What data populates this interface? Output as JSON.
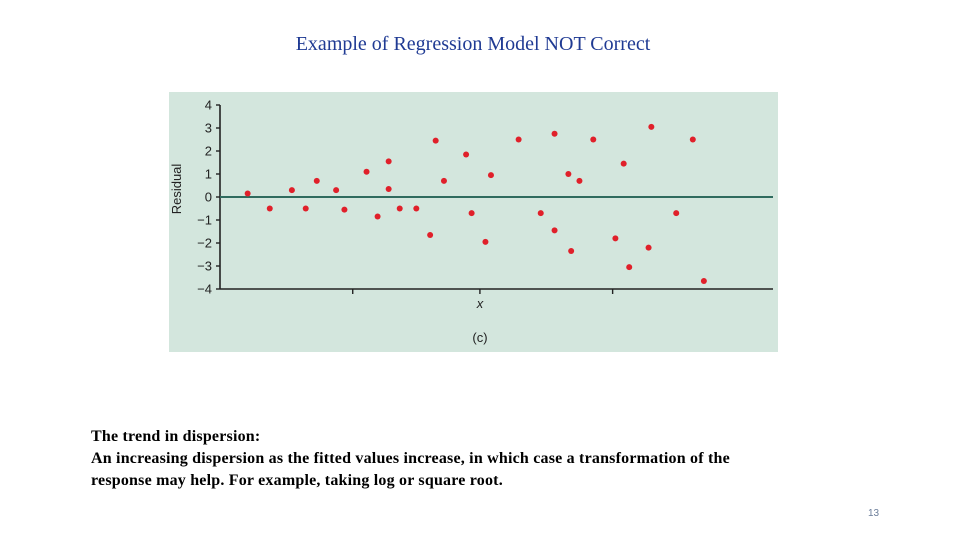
{
  "slide": {
    "title": "Example of Regression Model NOT Correct",
    "body_lines": [
      "The trend in dispersion:",
      "An increasing dispersion as the fitted values increase, in which case a transformation of the",
      "response may help. For example, taking log or square root."
    ],
    "page_number": "13"
  },
  "colors": {
    "plot_background": "#d3e6dd",
    "point": "#e0202a",
    "zero_line": "#2f6b5e",
    "axis": "#222222"
  },
  "chart_data": {
    "type": "scatter",
    "title": "",
    "xlabel": "x",
    "ylabel": "Residual",
    "caption": "(c)",
    "ylim": [
      -4,
      4
    ],
    "yticks": [
      "4",
      "3",
      "2",
      "1",
      "0",
      "−1",
      "−2",
      "−3",
      "−4"
    ],
    "ytick_values": [
      4,
      3,
      2,
      1,
      0,
      -1,
      -2,
      -3,
      -4
    ],
    "xlim": [
      0,
      100
    ],
    "xtick_values": [
      24,
      47,
      71
    ],
    "reference_line_y": 0,
    "grid": false,
    "points": [
      {
        "x": 5,
        "y": 0.15
      },
      {
        "x": 9,
        "y": -0.5
      },
      {
        "x": 13,
        "y": 0.3
      },
      {
        "x": 15.5,
        "y": -0.5
      },
      {
        "x": 17.5,
        "y": 0.7
      },
      {
        "x": 21,
        "y": 0.3
      },
      {
        "x": 22.5,
        "y": -0.55
      },
      {
        "x": 26.5,
        "y": 1.1
      },
      {
        "x": 28.5,
        "y": -0.85
      },
      {
        "x": 30.5,
        "y": 1.55
      },
      {
        "x": 30.5,
        "y": 0.35
      },
      {
        "x": 32.5,
        "y": -0.5
      },
      {
        "x": 35.5,
        "y": -0.5
      },
      {
        "x": 38,
        "y": -1.65
      },
      {
        "x": 39,
        "y": 2.45
      },
      {
        "x": 40.5,
        "y": 0.7
      },
      {
        "x": 44.5,
        "y": 1.85
      },
      {
        "x": 45.5,
        "y": -0.7
      },
      {
        "x": 48,
        "y": -1.95
      },
      {
        "x": 49,
        "y": 0.95
      },
      {
        "x": 54,
        "y": 2.5
      },
      {
        "x": 58,
        "y": -0.7
      },
      {
        "x": 60.5,
        "y": 2.75
      },
      {
        "x": 60.5,
        "y": -1.45
      },
      {
        "x": 63,
        "y": 1.0
      },
      {
        "x": 63.5,
        "y": -2.35
      },
      {
        "x": 65,
        "y": 0.7
      },
      {
        "x": 67.5,
        "y": 2.5
      },
      {
        "x": 71.5,
        "y": -1.8
      },
      {
        "x": 73,
        "y": 1.45
      },
      {
        "x": 74,
        "y": -3.05
      },
      {
        "x": 77.5,
        "y": -2.2
      },
      {
        "x": 78,
        "y": 3.05
      },
      {
        "x": 82.5,
        "y": -0.7
      },
      {
        "x": 85.5,
        "y": 2.5
      },
      {
        "x": 87.5,
        "y": -3.65
      }
    ]
  }
}
